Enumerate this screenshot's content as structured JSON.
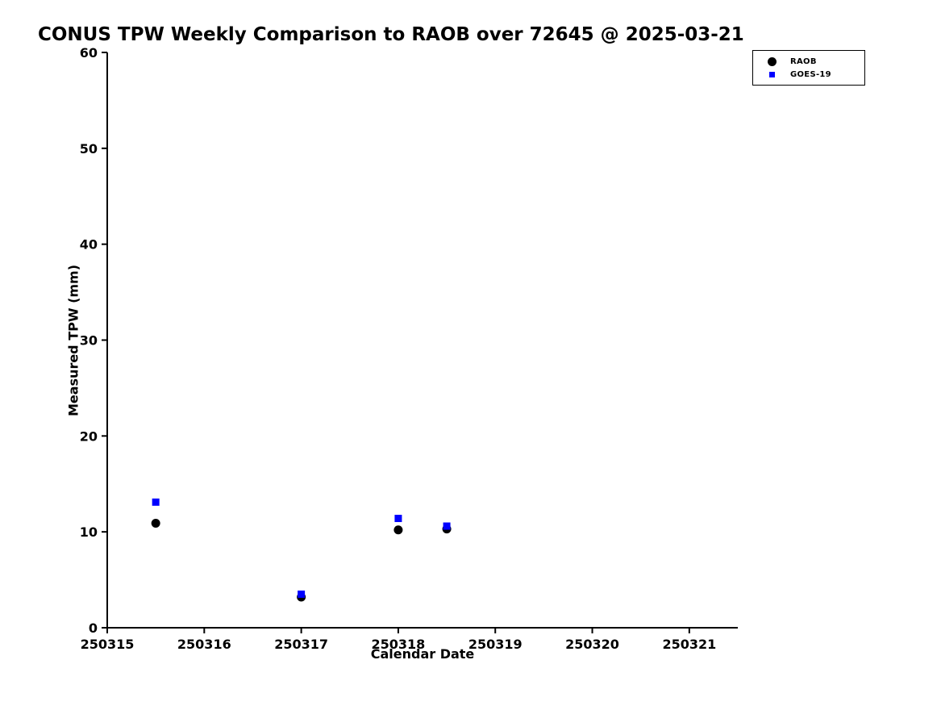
{
  "title": "CONUS TPW Weekly Comparison to RAOB over 72645 @ 2025-03-21",
  "chart_data": {
    "type": "scatter",
    "title": "CONUS TPW Weekly Comparison to RAOB over 72645 @ 2025-03-21",
    "xlabel": "Calendar Date",
    "ylabel": "Measured TPW (mm)",
    "xlim": [
      250315,
      250321.5
    ],
    "ylim": [
      0,
      60
    ],
    "xticks": [
      250315,
      250316,
      250317,
      250318,
      250319,
      250320,
      250321
    ],
    "yticks": [
      0,
      10,
      20,
      30,
      40,
      50,
      60
    ],
    "grid": false,
    "legend_position": "top-right",
    "axis_color": "#000000",
    "series": [
      {
        "name": "RAOB",
        "marker": "circle",
        "color": "#000000",
        "points": [
          [
            250315.5,
            10.9
          ],
          [
            250317.0,
            3.2
          ],
          [
            250318.0,
            10.2
          ],
          [
            250318.5,
            10.3
          ]
        ]
      },
      {
        "name": "GOES-19",
        "marker": "square",
        "color": "#0000ff",
        "points": [
          [
            250315.5,
            13.1
          ],
          [
            250317.0,
            3.5
          ],
          [
            250318.0,
            11.4
          ],
          [
            250318.5,
            10.6
          ]
        ]
      }
    ]
  }
}
